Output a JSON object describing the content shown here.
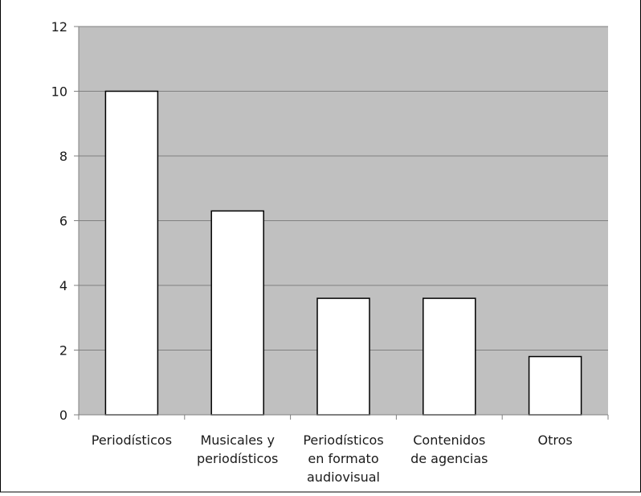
{
  "chart_data": {
    "type": "bar",
    "categories": [
      [
        "Periodísticos"
      ],
      [
        "Musicales y",
        "periodísticos"
      ],
      [
        "Periodísticos",
        "en formato",
        "audiovisual"
      ],
      [
        "Contenidos",
        "de agencias"
      ],
      [
        "Otros"
      ]
    ],
    "values": [
      10,
      6.3,
      3.6,
      3.6,
      1.8
    ],
    "ylim": [
      0,
      12
    ],
    "yticks": [
      "0",
      "2",
      "4",
      "6",
      "8",
      "10",
      "12"
    ],
    "grid": true,
    "legend": "none",
    "colors": {
      "plot_background": "#c0c0c0",
      "bar_fill": "#ffffff",
      "bar_stroke": "#000000",
      "gridline": "#808080",
      "axis": "#808080"
    }
  }
}
